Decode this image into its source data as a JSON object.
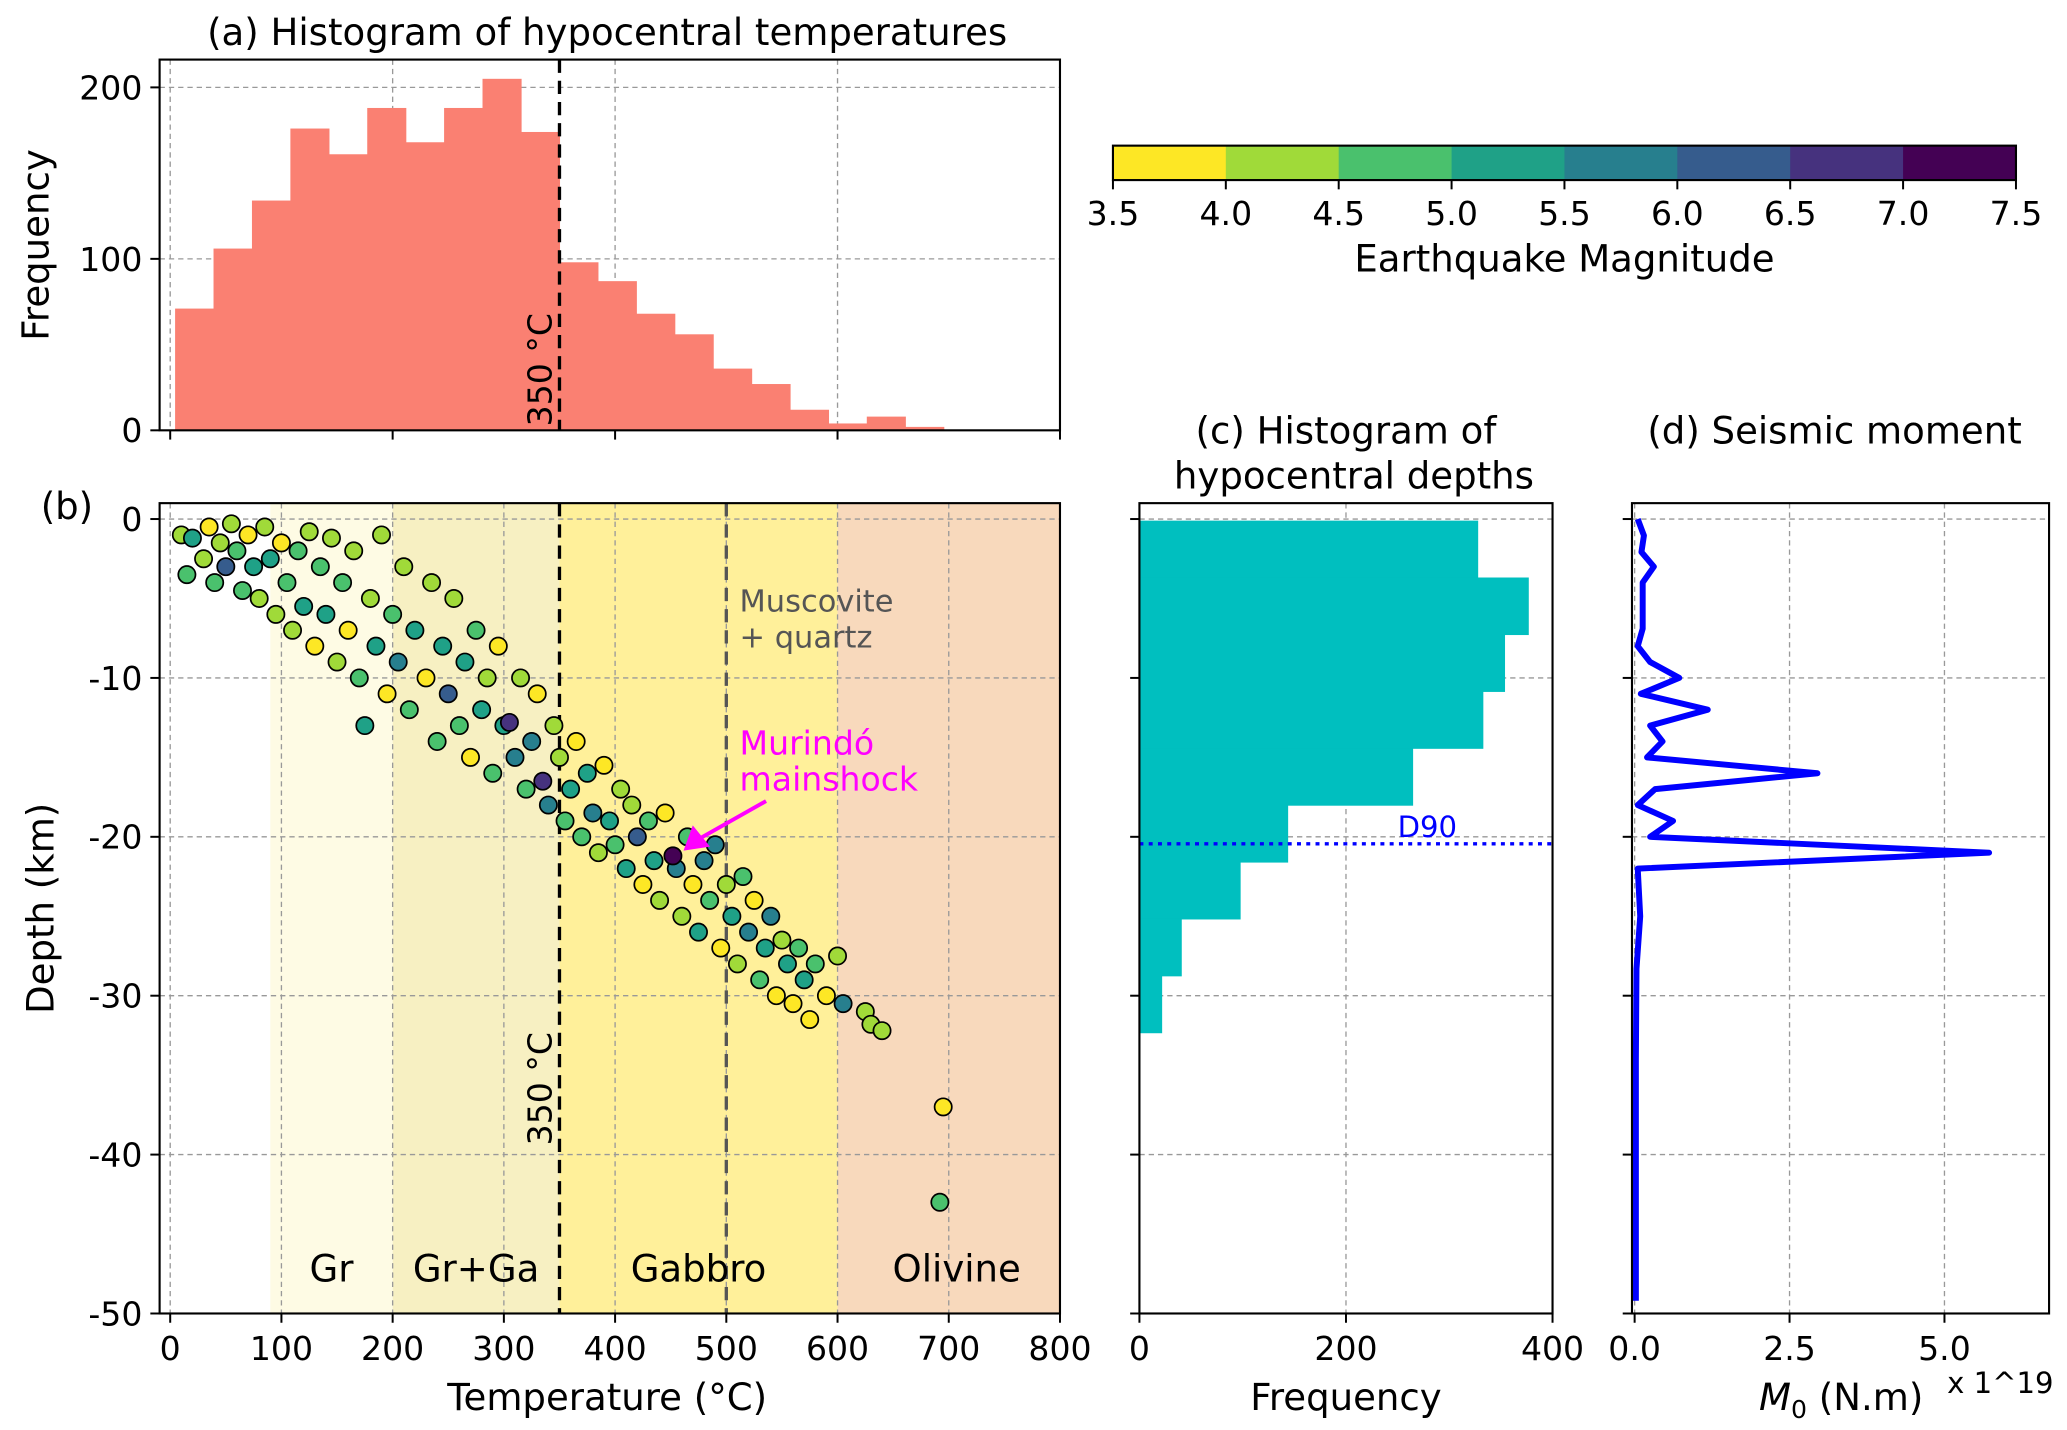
{
  "chart_data": [
    {
      "panel": "a",
      "type": "bar",
      "title": "(a) Histogram of hypocentral temperatures",
      "ylabel": "Frequency",
      "xlim": [
        -10,
        800
      ],
      "ylim": [
        0,
        216
      ],
      "yticks": [
        "0",
        "100",
        "200"
      ],
      "xticks": [
        0,
        200,
        400,
        600,
        800
      ],
      "grid": true,
      "color": "#fa8072",
      "bin_start": 4.4,
      "bin_width": 34.55,
      "values": [
        71,
        106,
        134,
        176,
        161,
        188,
        168,
        188,
        205,
        174,
        98,
        87,
        68,
        56,
        36,
        27,
        12,
        4,
        8,
        2
      ],
      "vline": {
        "x": 350,
        "label": "350 °C"
      }
    },
    {
      "panel": "b",
      "type": "scatter",
      "panel_label": "(b)",
      "xlabel": "Temperature (°C)",
      "ylabel": "Depth (km)",
      "xlim": [
        -10,
        800
      ],
      "ylim": [
        -50,
        1
      ],
      "xticks": [
        "0",
        "100",
        "200",
        "300",
        "400",
        "500",
        "600",
        "700",
        "800"
      ],
      "yticks": [
        "0",
        "-10",
        "-20",
        "-30",
        "-40",
        "-50"
      ],
      "grid": true,
      "zones": [
        {
          "label": "Gr",
          "from": 90,
          "to": 200,
          "color": "#fefbe4"
        },
        {
          "label": "Gr+Ga",
          "from": 200,
          "to": 350,
          "color": "#f7f0c2"
        },
        {
          "label": "Gabbro",
          "from": 350,
          "to": 600,
          "color": "#fff09a"
        },
        {
          "label": "Olivine",
          "from": 600,
          "to": 800,
          "color": "#f8d9bc"
        }
      ],
      "vlines": [
        {
          "x": 350,
          "label": "350 °C",
          "color": "#000000"
        },
        {
          "x": 500,
          "label_line1": "Muscovite",
          "label_line2": "+ quartz",
          "color": "#555555"
        }
      ],
      "annotation": {
        "line1": "Murindó",
        "line2": "mainshock",
        "color": "#ff00ff",
        "point": [
          452,
          -21.2,
          7.0
        ]
      },
      "points": [
        [
          10,
          -1,
          4.2
        ],
        [
          15,
          -3.5,
          4.6
        ],
        [
          20,
          -1.2,
          5.3
        ],
        [
          30,
          -2.5,
          4.1
        ],
        [
          35,
          -0.5,
          3.8
        ],
        [
          40,
          -4,
          4.7
        ],
        [
          45,
          -1.5,
          4.3
        ],
        [
          50,
          -3,
          6.0
        ],
        [
          55,
          -0.3,
          4.0
        ],
        [
          60,
          -2,
          4.8
        ],
        [
          65,
          -4.5,
          4.5
        ],
        [
          70,
          -1,
          3.9
        ],
        [
          75,
          -3,
          5.2
        ],
        [
          80,
          -5,
          4.2
        ],
        [
          85,
          -0.5,
          4.4
        ],
        [
          90,
          -2.5,
          5.0
        ],
        [
          95,
          -6,
          4.1
        ],
        [
          100,
          -1.5,
          3.7
        ],
        [
          105,
          -4,
          4.9
        ],
        [
          110,
          -7,
          4.3
        ],
        [
          115,
          -2,
          4.5
        ],
        [
          120,
          -5.5,
          5.1
        ],
        [
          125,
          -0.8,
          4.0
        ],
        [
          130,
          -8,
          3.6
        ],
        [
          135,
          -3,
          4.6
        ],
        [
          140,
          -6,
          5.4
        ],
        [
          145,
          -1.2,
          4.2
        ],
        [
          150,
          -9,
          4.4
        ],
        [
          155,
          -4,
          4.8
        ],
        [
          160,
          -7,
          3.8
        ],
        [
          165,
          -2,
          4.1
        ],
        [
          170,
          -10,
          4.7
        ],
        [
          175,
          -13,
          5.3
        ],
        [
          180,
          -5,
          4.3
        ],
        [
          185,
          -8,
          5.0
        ],
        [
          190,
          -1,
          4.4
        ],
        [
          195,
          -11,
          3.9
        ],
        [
          200,
          -6,
          4.6
        ],
        [
          205,
          -9,
          5.6
        ],
        [
          210,
          -3,
          4.2
        ],
        [
          215,
          -12,
          4.5
        ],
        [
          220,
          -7,
          5.1
        ],
        [
          230,
          -10,
          3.8
        ],
        [
          235,
          -4,
          4.3
        ],
        [
          240,
          -14,
          4.7
        ],
        [
          245,
          -8,
          5.2
        ],
        [
          250,
          -11,
          6.1
        ],
        [
          255,
          -5,
          4.0
        ],
        [
          260,
          -13,
          4.9
        ],
        [
          265,
          -9,
          5.4
        ],
        [
          270,
          -15,
          3.7
        ],
        [
          275,
          -7,
          4.5
        ],
        [
          280,
          -12,
          5.0
        ],
        [
          285,
          -10,
          4.2
        ],
        [
          290,
          -16,
          4.6
        ],
        [
          295,
          -8,
          3.9
        ],
        [
          300,
          -13,
          5.3
        ],
        [
          305,
          -12.8,
          6.5
        ],
        [
          310,
          -15,
          5.5
        ],
        [
          315,
          -10,
          4.1
        ],
        [
          320,
          -17,
          4.8
        ],
        [
          325,
          -14,
          5.7
        ],
        [
          330,
          -11,
          3.8
        ],
        [
          335,
          -16.5,
          6.6
        ],
        [
          340,
          -18,
          5.9
        ],
        [
          345,
          -13,
          4.4
        ],
        [
          350,
          -15,
          4.0
        ],
        [
          355,
          -19,
          4.7
        ],
        [
          360,
          -17,
          5.2
        ],
        [
          365,
          -14,
          3.6
        ],
        [
          370,
          -20,
          4.5
        ],
        [
          375,
          -16,
          5.0
        ],
        [
          380,
          -18.5,
          5.6
        ],
        [
          385,
          -21,
          4.2
        ],
        [
          390,
          -15.5,
          3.9
        ],
        [
          395,
          -19,
          5.3
        ],
        [
          400,
          -20.5,
          4.8
        ],
        [
          405,
          -17,
          4.1
        ],
        [
          410,
          -22,
          5.1
        ],
        [
          415,
          -18,
          4.4
        ],
        [
          420,
          -20,
          6.1
        ],
        [
          425,
          -23,
          3.8
        ],
        [
          430,
          -19,
          4.6
        ],
        [
          435,
          -21.5,
          5.4
        ],
        [
          440,
          -24,
          4.3
        ],
        [
          445,
          -18.5,
          3.7
        ],
        [
          455,
          -22,
          5.5
        ],
        [
          460,
          -25,
          4.2
        ],
        [
          465,
          -20,
          4.9
        ],
        [
          470,
          -23,
          3.9
        ],
        [
          475,
          -26,
          5.2
        ],
        [
          480,
          -21.5,
          5.7
        ],
        [
          485,
          -24,
          4.5
        ],
        [
          490,
          -20.5,
          5.8
        ],
        [
          495,
          -27,
          3.8
        ],
        [
          500,
          -23,
          4.4
        ],
        [
          505,
          -25,
          5.3
        ],
        [
          510,
          -28,
          4.1
        ],
        [
          515,
          -22.5,
          4.7
        ],
        [
          520,
          -26,
          5.5
        ],
        [
          525,
          -24,
          3.9
        ],
        [
          530,
          -29,
          4.6
        ],
        [
          535,
          -27,
          5.0
        ],
        [
          540,
          -25,
          5.6
        ],
        [
          545,
          -30,
          3.7
        ],
        [
          550,
          -26.5,
          4.3
        ],
        [
          555,
          -28,
          5.4
        ],
        [
          560,
          -30.5,
          3.8
        ],
        [
          565,
          -27,
          4.8
        ],
        [
          570,
          -29,
          5.1
        ],
        [
          575,
          -31.5,
          3.6
        ],
        [
          580,
          -28,
          4.5
        ],
        [
          590,
          -30,
          3.9
        ],
        [
          600,
          -27.5,
          4.0
        ],
        [
          605,
          -30.5,
          5.5
        ],
        [
          625,
          -31,
          4.2
        ],
        [
          630,
          -31.8,
          4.4
        ],
        [
          640,
          -32.2,
          4.3
        ],
        [
          695,
          -37,
          3.8
        ],
        [
          692,
          -43,
          4.7
        ]
      ]
    },
    {
      "panel": "colorbar",
      "type": "colorbar",
      "label": "Earthquake Magnitude",
      "ticks": [
        "3.5",
        "4.0",
        "4.5",
        "5.0",
        "5.5",
        "6.0",
        "6.5",
        "7.0",
        "7.5"
      ],
      "range": [
        3.5,
        7.5
      ],
      "colors": [
        "#fde725",
        "#a0da39",
        "#4ac16d",
        "#1fa187",
        "#277f8e",
        "#365c8d",
        "#46327e",
        "#440154"
      ]
    },
    {
      "panel": "c",
      "type": "bar",
      "orientation": "horizontal",
      "title_line1": "(c) Histogram of",
      "title_line2": "hypocentral depths",
      "xlabel": "Frequency",
      "xlim": [
        0,
        400
      ],
      "xticks": [
        "0",
        "200",
        "400"
      ],
      "ylim": [
        -50,
        1
      ],
      "grid": true,
      "color": "#00bfbf",
      "bin_top": -0.1,
      "bin_height": 3.58,
      "values": [
        328,
        377,
        354,
        333,
        265,
        144,
        98,
        41,
        22
      ],
      "hline": {
        "y": -20.44,
        "label": "D90",
        "color": "#0000ff"
      }
    },
    {
      "panel": "d",
      "type": "line",
      "title": "(d) Seismic moment",
      "xlabel": "M",
      "xlabel_sub": "0",
      "xlabel_unit": " (N.m)",
      "offset_text": "x 1^19",
      "xlim": [
        0,
        6.7
      ],
      "xticks": [
        "0.0",
        "2.5",
        "5.0"
      ],
      "ylim": [
        -50,
        1
      ],
      "grid": true,
      "color": "#0000ff",
      "points": [
        [
          0.05,
          0
        ],
        [
          0.15,
          -1.04
        ],
        [
          0.11,
          -2.08
        ],
        [
          0.31,
          -3.0
        ],
        [
          0.13,
          -4.0
        ],
        [
          0.13,
          -6.9
        ],
        [
          0.05,
          -8.0
        ],
        [
          0.25,
          -9.0
        ],
        [
          0.72,
          -10.0
        ],
        [
          0.1,
          -11.0
        ],
        [
          1.18,
          -12.0
        ],
        [
          0.25,
          -13.0
        ],
        [
          0.45,
          -14.0
        ],
        [
          0.2,
          -15.0
        ],
        [
          2.95,
          -16.0
        ],
        [
          0.33,
          -17.0
        ],
        [
          0.05,
          -18.0
        ],
        [
          0.62,
          -19.0
        ],
        [
          0.25,
          -20.0
        ],
        [
          5.72,
          -21.0
        ],
        [
          0.05,
          -22.0
        ],
        [
          0.09,
          -25.0
        ],
        [
          0.03,
          -28.3
        ],
        [
          0.02,
          -34
        ],
        [
          0.02,
          -49.2
        ]
      ]
    }
  ]
}
